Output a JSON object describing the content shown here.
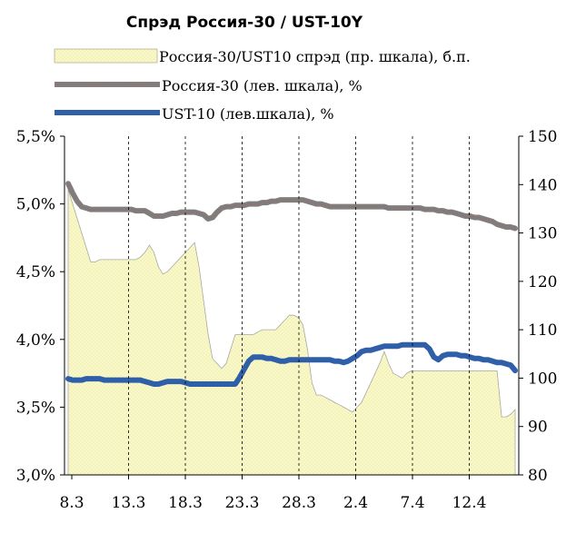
{
  "chart_data": {
    "type": "line",
    "title": "Спрэд  Россия-30 / UST-10Y",
    "x_labels": [
      "8.3",
      "13.3",
      "18.3",
      "23.3",
      "28.3",
      "2.4",
      "7.4",
      "12.4"
    ],
    "y_left": {
      "ticks": [
        "3,0%",
        "3,5%",
        "4,0%",
        "4,5%",
        "5,0%",
        "5,5%"
      ],
      "range": [
        3.0,
        5.5
      ]
    },
    "y_right": {
      "ticks": [
        "80",
        "90",
        "100",
        "110",
        "120",
        "130",
        "140",
        "150"
      ],
      "range": [
        80,
        150
      ]
    },
    "x": [
      0,
      1,
      2,
      3,
      4,
      5,
      6,
      7,
      8,
      9,
      10,
      11,
      12,
      13,
      14,
      15,
      16,
      17,
      18,
      19,
      20,
      21,
      22,
      23,
      24,
      25,
      26,
      27,
      28,
      29,
      30,
      31,
      32,
      33,
      34,
      35,
      36,
      37,
      38,
      39,
      40,
      41,
      42,
      43,
      44,
      45,
      46,
      47,
      48,
      49,
      50,
      51,
      52,
      53,
      54,
      55,
      56,
      57,
      58,
      59,
      60,
      61,
      62,
      63,
      64,
      65,
      66,
      67,
      68,
      69,
      70,
      71,
      72,
      73,
      74,
      75,
      76,
      77,
      78,
      79,
      80,
      81,
      82,
      83,
      84,
      85,
      86,
      87,
      88,
      89,
      90,
      91,
      92,
      93,
      94,
      95,
      96,
      97,
      98,
      99
    ],
    "series": [
      {
        "name": "Россия-30/UST10 спрэд (пр. шкала), б.п.",
        "axis": "right",
        "kind": "area",
        "color": "#fafac8",
        "values": [
          139,
          136,
          133,
          130,
          127,
          124,
          124,
          124.5,
          124.5,
          124.5,
          124.5,
          124.5,
          124.5,
          124.5,
          124.5,
          124.5,
          125,
          126,
          127.5,
          126,
          123,
          121.5,
          122,
          123,
          124,
          125,
          126,
          127,
          128,
          123,
          116,
          109,
          104,
          103,
          102,
          103,
          106,
          109,
          109,
          109,
          109,
          109,
          109.5,
          110,
          110,
          110,
          110,
          111,
          112,
          113,
          113,
          112.5,
          111,
          106,
          99,
          96.5,
          96.5,
          96,
          95.5,
          95,
          94.5,
          94,
          93.5,
          93,
          94,
          95,
          97,
          99,
          101,
          103,
          105.5,
          103,
          101,
          100.5,
          100,
          101,
          101.5,
          101.5,
          101.5,
          101.5,
          101.5,
          101.5,
          101.5,
          101.5,
          101.5,
          101.5,
          101.5,
          101.5,
          101.5,
          101.5,
          101.5,
          101.5,
          101.5,
          101.5,
          101.5,
          101.5,
          92,
          92,
          92.5,
          93.5
        ]
      },
      {
        "name": "Россия-30 (лев. шкала), %",
        "axis": "left",
        "kind": "line",
        "color": "#7f7f7f",
        "accent": "#c0504d",
        "values": [
          5.15,
          5.08,
          5.02,
          4.98,
          4.97,
          4.96,
          4.96,
          4.96,
          4.96,
          4.96,
          4.96,
          4.96,
          4.96,
          4.96,
          4.96,
          4.95,
          4.95,
          4.95,
          4.93,
          4.91,
          4.91,
          4.91,
          4.92,
          4.93,
          4.93,
          4.94,
          4.94,
          4.94,
          4.94,
          4.93,
          4.92,
          4.89,
          4.9,
          4.94,
          4.97,
          4.98,
          4.98,
          4.99,
          4.99,
          4.99,
          5.0,
          5.0,
          5.0,
          5.01,
          5.01,
          5.02,
          5.02,
          5.03,
          5.03,
          5.03,
          5.03,
          5.03,
          5.03,
          5.02,
          5.01,
          5.0,
          5.0,
          4.99,
          4.98,
          4.98,
          4.98,
          4.98,
          4.98,
          4.98,
          4.98,
          4.98,
          4.98,
          4.98,
          4.98,
          4.98,
          4.98,
          4.97,
          4.97,
          4.97,
          4.97,
          4.97,
          4.97,
          4.97,
          4.97,
          4.96,
          4.96,
          4.96,
          4.95,
          4.95,
          4.94,
          4.94,
          4.93,
          4.92,
          4.91,
          4.91,
          4.9,
          4.9,
          4.89,
          4.88,
          4.87,
          4.85,
          4.84,
          4.83,
          4.83,
          4.82
        ]
      },
      {
        "name": "UST-10 (лев.шкала), %",
        "axis": "left",
        "kind": "line",
        "color": "#2e5fa8",
        "values": [
          3.71,
          3.7,
          3.7,
          3.7,
          3.71,
          3.71,
          3.71,
          3.71,
          3.7,
          3.7,
          3.7,
          3.7,
          3.7,
          3.7,
          3.7,
          3.7,
          3.7,
          3.69,
          3.68,
          3.67,
          3.67,
          3.68,
          3.69,
          3.69,
          3.69,
          3.69,
          3.68,
          3.67,
          3.67,
          3.67,
          3.67,
          3.67,
          3.67,
          3.67,
          3.67,
          3.67,
          3.67,
          3.67,
          3.72,
          3.78,
          3.84,
          3.87,
          3.87,
          3.87,
          3.86,
          3.86,
          3.85,
          3.84,
          3.84,
          3.85,
          3.85,
          3.85,
          3.85,
          3.85,
          3.85,
          3.85,
          3.85,
          3.85,
          3.85,
          3.84,
          3.84,
          3.83,
          3.84,
          3.86,
          3.88,
          3.91,
          3.92,
          3.92,
          3.93,
          3.94,
          3.95,
          3.95,
          3.95,
          3.95,
          3.96,
          3.96,
          3.96,
          3.96,
          3.96,
          3.96,
          3.93,
          3.87,
          3.85,
          3.88,
          3.89,
          3.89,
          3.89,
          3.88,
          3.88,
          3.87,
          3.86,
          3.86,
          3.85,
          3.85,
          3.84,
          3.83,
          3.83,
          3.82,
          3.81,
          3.77
        ]
      }
    ]
  }
}
